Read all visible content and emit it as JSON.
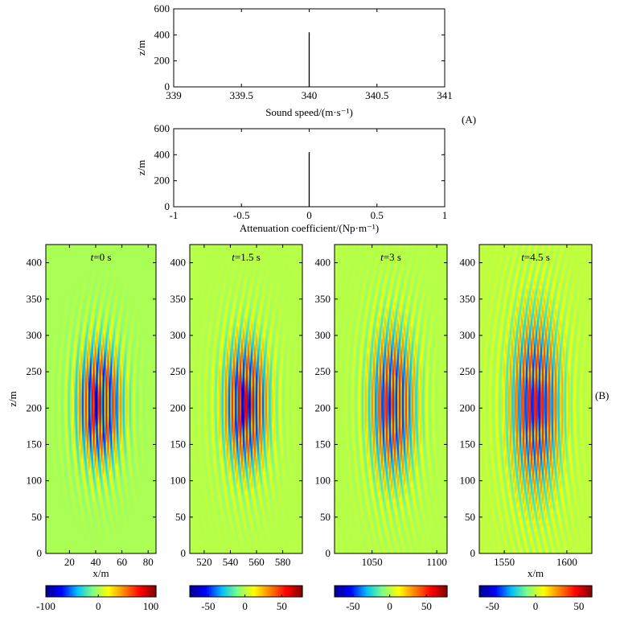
{
  "panel_tags": {
    "a": "(A)",
    "b": "(B)"
  },
  "cmap": [
    "#00008f",
    "#0000ff",
    "#00bfff",
    "#80ff80",
    "#ffff00",
    "#ff8000",
    "#ff0000",
    "#800000"
  ],
  "chart_data": [
    {
      "type": "line",
      "name": "sound-speed-profile",
      "xlabel": "Sound speed/(m·s⁻¹)",
      "ylabel": "z/m",
      "xlim": [
        339,
        341
      ],
      "ylim": [
        0,
        600
      ],
      "xticks": [
        339,
        339.5,
        340,
        340.5,
        341
      ],
      "yticks": [
        0,
        200,
        400,
        600
      ],
      "series": [
        {
          "name": "c(z)",
          "x": [
            340,
            340
          ],
          "y": [
            0,
            420
          ]
        }
      ]
    },
    {
      "type": "line",
      "name": "attenuation-profile",
      "xlabel": "Attenuation coefficient/(Np·m⁻¹)",
      "ylabel": "z/m",
      "xlim": [
        -1,
        1
      ],
      "ylim": [
        0,
        600
      ],
      "xticks": [
        -1,
        -0.5,
        0,
        0.5,
        1
      ],
      "yticks": [
        0,
        200,
        400,
        600
      ],
      "series": [
        {
          "name": "alpha(z)",
          "x": [
            0,
            0
          ],
          "y": [
            0,
            420
          ]
        }
      ]
    },
    {
      "type": "heatmap",
      "name": "snapshot-t0",
      "title": "t=0 s",
      "title_var": "t",
      "title_rest": "=0 s",
      "xlabel": "x/m",
      "ylabel": "z/m",
      "xlim": [
        2,
        86
      ],
      "ylim": [
        0,
        425
      ],
      "xticks": [
        20,
        40,
        60,
        80
      ],
      "yticks": [
        0,
        50,
        100,
        150,
        200,
        250,
        300,
        350,
        400
      ],
      "packet": {
        "center_x": 43,
        "center_z": 205,
        "width_x": 13,
        "width_z": 62,
        "wavelength": 5.2,
        "amplitude": 110
      },
      "colorbar": {
        "min": -100,
        "max": 110,
        "ticks": [
          -100,
          0,
          100
        ]
      }
    },
    {
      "type": "heatmap",
      "name": "snapshot-t1.5",
      "title": "t=1.5 s",
      "title_var": "t",
      "title_rest": "=1.5 s",
      "xlabel": "",
      "ylabel": "",
      "xlim": [
        509,
        595
      ],
      "ylim": [
        0,
        425
      ],
      "xticks": [
        520,
        540,
        560,
        580
      ],
      "yticks": [
        0,
        50,
        100,
        150,
        200,
        250,
        300,
        350,
        400
      ],
      "packet": {
        "center_x": 552,
        "center_z": 205,
        "width_x": 13,
        "width_z": 67,
        "wavelength": 5.2,
        "amplitude": 80
      },
      "colorbar": {
        "min": -75,
        "max": 78,
        "ticks": [
          -50,
          0,
          50
        ]
      }
    },
    {
      "type": "heatmap",
      "name": "snapshot-t3",
      "title": "t=3 s",
      "title_var": "t",
      "title_rest": "=3 s",
      "xlabel": "",
      "ylabel": "",
      "xlim": [
        1021,
        1108
      ],
      "ylim": [
        0,
        425
      ],
      "xticks": [
        1050,
        1100
      ],
      "yticks": [
        0,
        50,
        100,
        150,
        200,
        250,
        300,
        350,
        400
      ],
      "packet": {
        "center_x": 1066,
        "center_z": 205,
        "width_x": 14,
        "width_z": 80,
        "wavelength": 5.2,
        "amplitude": 70
      },
      "colorbar": {
        "min": -75,
        "max": 78,
        "ticks": [
          -50,
          0,
          50
        ]
      }
    },
    {
      "type": "heatmap",
      "name": "snapshot-t4.5",
      "title": "t=4.5 s",
      "title_var": "t",
      "title_rest": "=4.5 s",
      "xlabel": "x/m",
      "ylabel": "",
      "xlim": [
        1530,
        1620
      ],
      "ylim": [
        0,
        425
      ],
      "xticks": [
        1550,
        1600
      ],
      "yticks": [
        0,
        50,
        100,
        150,
        200,
        250,
        300,
        350,
        400
      ],
      "packet": {
        "center_x": 1575,
        "center_z": 205,
        "width_x": 16,
        "width_z": 95,
        "wavelength": 5.2,
        "amplitude": 60
      },
      "colorbar": {
        "min": -65,
        "max": 65,
        "ticks": [
          -50,
          0,
          50
        ]
      }
    }
  ]
}
